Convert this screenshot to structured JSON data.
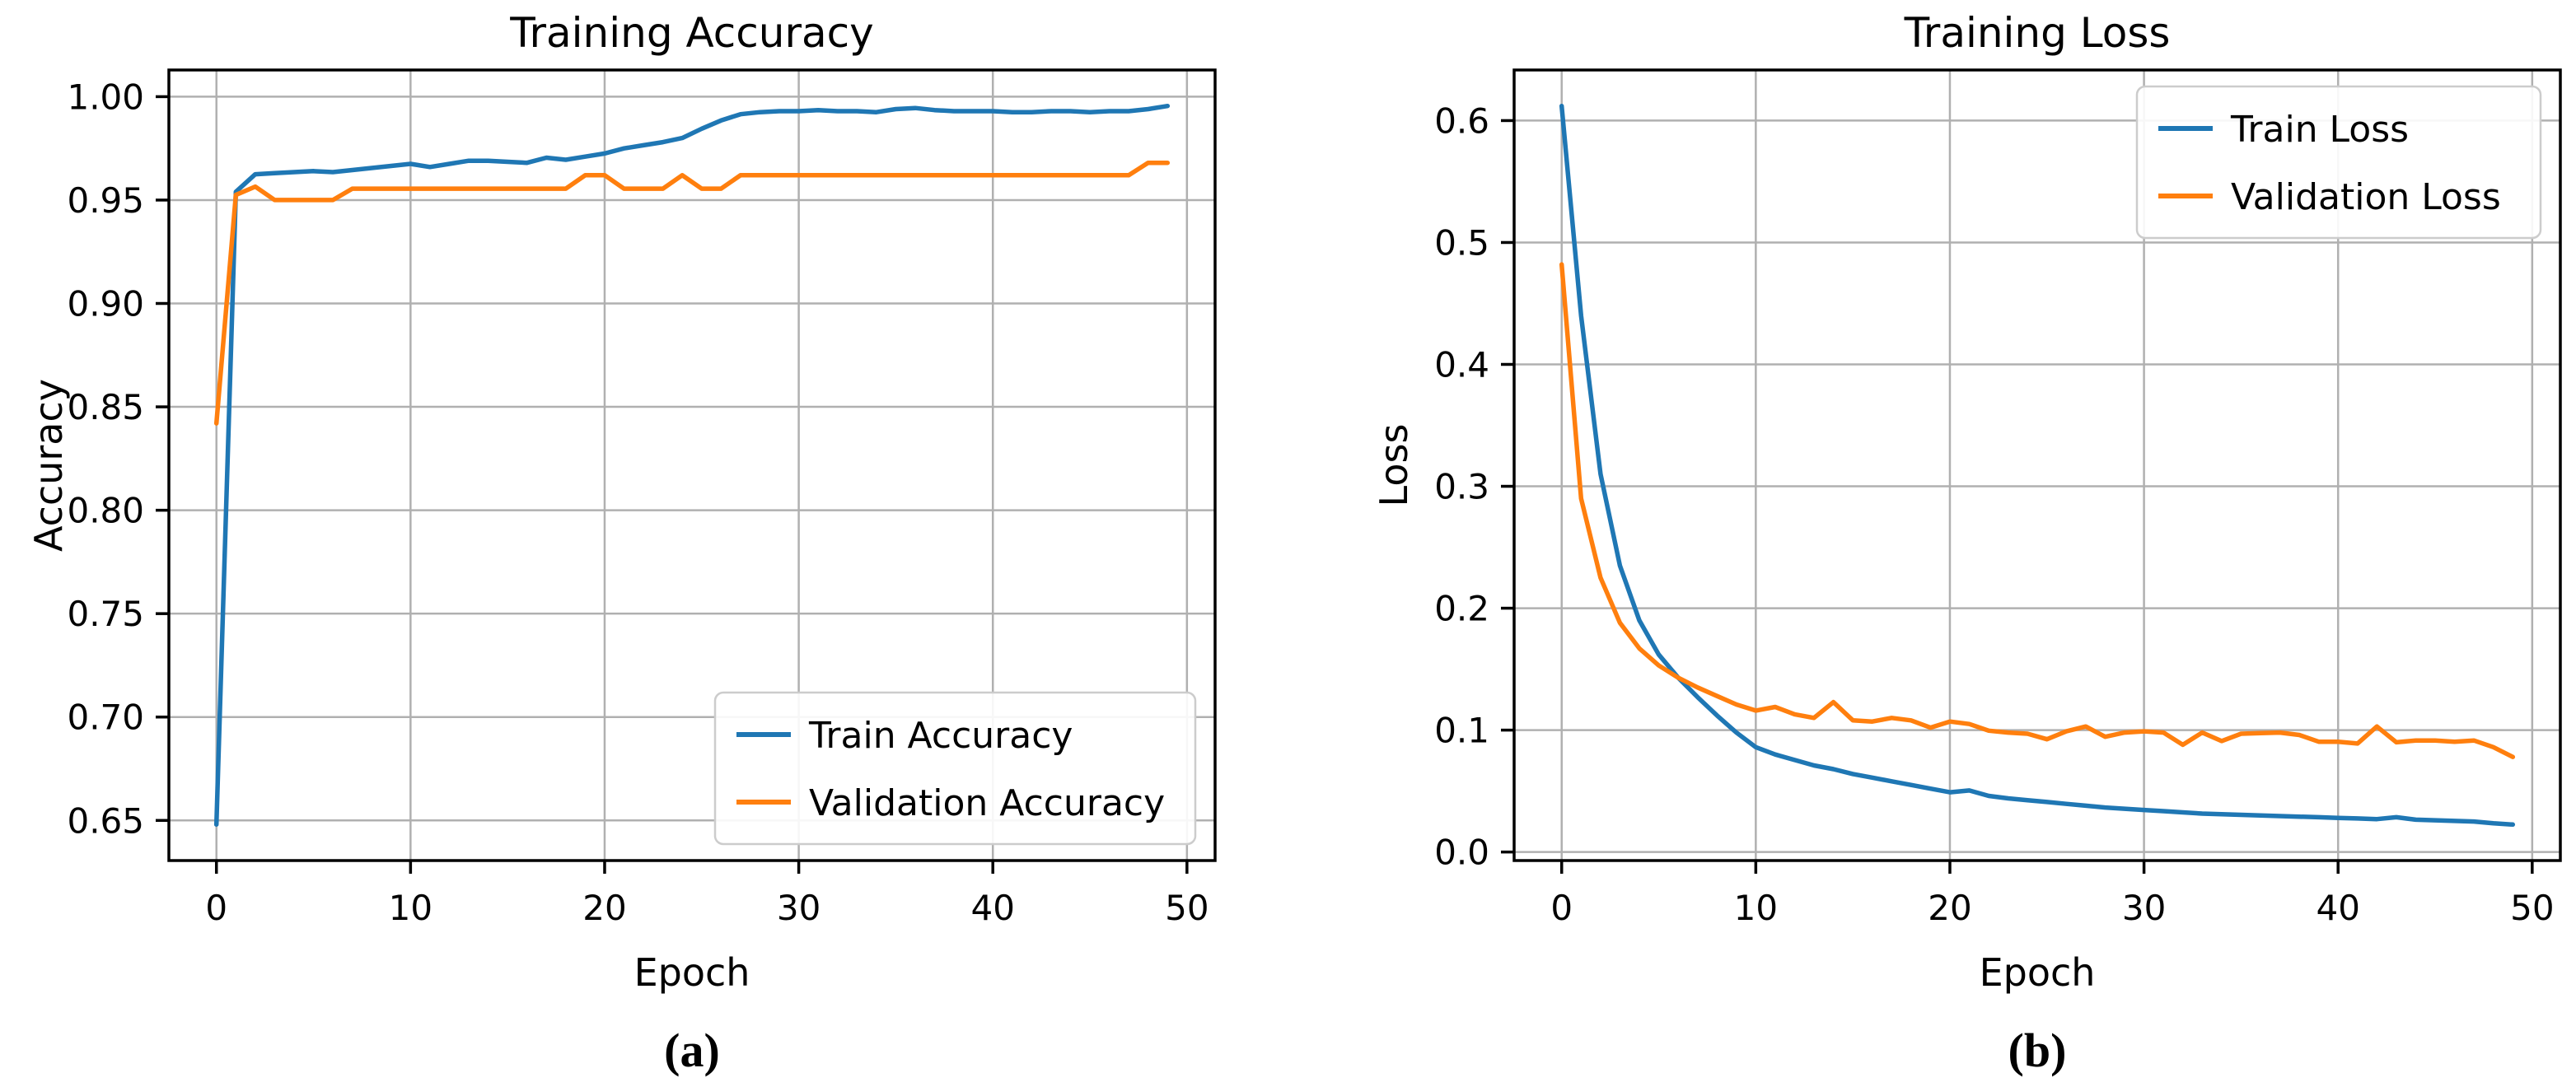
{
  "figure": {
    "background": "#ffffff",
    "grid_color": "#b0b0b0",
    "spine_color": "#000000",
    "text_color": "#000000",
    "legend_border_color": "#cccccc",
    "legend_background": "#ffffff",
    "train_color": "#1f77b4",
    "validation_color": "#ff7f0e"
  },
  "chart_data": [
    {
      "type": "line",
      "title": "Training Accuracy",
      "xlabel": "Epoch",
      "ylabel": "Accuracy",
      "panel_label": "(a)",
      "grid": true,
      "legend_position": "lower-right",
      "xlim": [
        -2.45,
        51.45
      ],
      "ylim": [
        0.6306,
        1.0129
      ],
      "xticks": [
        0,
        10,
        20,
        30,
        40,
        50
      ],
      "xtick_labels": [
        "0",
        "10",
        "20",
        "30",
        "40",
        "50"
      ],
      "yticks": [
        0.65,
        0.7,
        0.75,
        0.8,
        0.85,
        0.9,
        0.95,
        1.0
      ],
      "ytick_labels": [
        "0.65",
        "0.70",
        "0.75",
        "0.80",
        "0.85",
        "0.90",
        "0.95",
        "1.00"
      ],
      "epochs": [
        0,
        1,
        2,
        3,
        4,
        5,
        6,
        7,
        8,
        9,
        10,
        11,
        12,
        13,
        14,
        15,
        16,
        17,
        18,
        19,
        20,
        21,
        22,
        23,
        24,
        25,
        26,
        27,
        28,
        29,
        30,
        31,
        32,
        33,
        34,
        35,
        36,
        37,
        38,
        39,
        40,
        41,
        42,
        43,
        44,
        45,
        46,
        47,
        48,
        49
      ],
      "series": [
        {
          "name": "Train Accuracy",
          "color": "#1f77b4",
          "values": [
            0.648,
            0.954,
            0.9625,
            0.963,
            0.9635,
            0.964,
            0.9635,
            0.9645,
            0.9655,
            0.9665,
            0.9675,
            0.966,
            0.9675,
            0.969,
            0.969,
            0.9685,
            0.968,
            0.9705,
            0.9695,
            0.971,
            0.9725,
            0.975,
            0.9765,
            0.978,
            0.98,
            0.9845,
            0.9885,
            0.9915,
            0.9925,
            0.993,
            0.993,
            0.9935,
            0.993,
            0.993,
            0.9925,
            0.994,
            0.9945,
            0.9935,
            0.993,
            0.993,
            0.993,
            0.9925,
            0.9925,
            0.993,
            0.993,
            0.9925,
            0.993,
            0.993,
            0.994,
            0.9955
          ]
        },
        {
          "name": "Validation Accuracy",
          "color": "#ff7f0e",
          "values": [
            0.842,
            0.9525,
            0.9565,
            0.95,
            0.95,
            0.95,
            0.95,
            0.9555,
            0.9555,
            0.9555,
            0.9555,
            0.9555,
            0.9555,
            0.9555,
            0.9555,
            0.9555,
            0.9555,
            0.9555,
            0.9555,
            0.962,
            0.962,
            0.9555,
            0.9555,
            0.9555,
            0.962,
            0.9555,
            0.9555,
            0.962,
            0.962,
            0.962,
            0.962,
            0.962,
            0.962,
            0.962,
            0.962,
            0.962,
            0.962,
            0.962,
            0.962,
            0.962,
            0.962,
            0.962,
            0.962,
            0.962,
            0.962,
            0.962,
            0.962,
            0.962,
            0.968,
            0.968
          ]
        }
      ]
    },
    {
      "type": "line",
      "title": "Training Loss",
      "xlabel": "Epoch",
      "ylabel": "Loss",
      "panel_label": "(b)",
      "grid": true,
      "legend_position": "upper-right",
      "xlim": [
        -2.45,
        51.45
      ],
      "ylim": [
        -0.007,
        0.6415
      ],
      "xticks": [
        0,
        10,
        20,
        30,
        40,
        50
      ],
      "xtick_labels": [
        "0",
        "10",
        "20",
        "30",
        "40",
        "50"
      ],
      "yticks": [
        0.0,
        0.1,
        0.2,
        0.3,
        0.4,
        0.5,
        0.6
      ],
      "ytick_labels": [
        "0.0",
        "0.1",
        "0.2",
        "0.3",
        "0.4",
        "0.5",
        "0.6"
      ],
      "epochs": [
        0,
        1,
        2,
        3,
        4,
        5,
        6,
        7,
        8,
        9,
        10,
        11,
        12,
        13,
        14,
        15,
        16,
        17,
        18,
        19,
        20,
        21,
        22,
        23,
        24,
        25,
        26,
        27,
        28,
        29,
        30,
        31,
        32,
        33,
        34,
        35,
        36,
        37,
        38,
        39,
        40,
        41,
        42,
        43,
        44,
        45,
        46,
        47,
        48,
        49
      ],
      "series": [
        {
          "name": "Train Loss",
          "color": "#1f77b4",
          "values": [
            0.612,
            0.44,
            0.31,
            0.235,
            0.19,
            0.162,
            0.143,
            0.127,
            0.112,
            0.098,
            0.086,
            0.08,
            0.0755,
            0.071,
            0.068,
            0.064,
            0.061,
            0.058,
            0.055,
            0.052,
            0.049,
            0.0505,
            0.046,
            0.044,
            0.0425,
            0.041,
            0.0395,
            0.038,
            0.0365,
            0.0355,
            0.0345,
            0.0335,
            0.0325,
            0.0315,
            0.031,
            0.0305,
            0.03,
            0.0295,
            0.029,
            0.0285,
            0.028,
            0.0275,
            0.027,
            0.0285,
            0.0265,
            0.026,
            0.0255,
            0.025,
            0.0235,
            0.0225
          ]
        },
        {
          "name": "Validation Loss",
          "color": "#ff7f0e",
          "values": [
            0.482,
            0.29,
            0.225,
            0.188,
            0.167,
            0.153,
            0.143,
            0.135,
            0.128,
            0.121,
            0.116,
            0.119,
            0.113,
            0.11,
            0.123,
            0.108,
            0.107,
            0.11,
            0.108,
            0.102,
            0.107,
            0.105,
            0.0995,
            0.098,
            0.097,
            0.0925,
            0.099,
            0.103,
            0.0945,
            0.098,
            0.099,
            0.098,
            0.088,
            0.098,
            0.091,
            0.097,
            0.0975,
            0.098,
            0.096,
            0.0905,
            0.0905,
            0.089,
            0.103,
            0.09,
            0.0915,
            0.0915,
            0.0905,
            0.0915,
            0.086,
            0.078
          ]
        }
      ]
    }
  ]
}
